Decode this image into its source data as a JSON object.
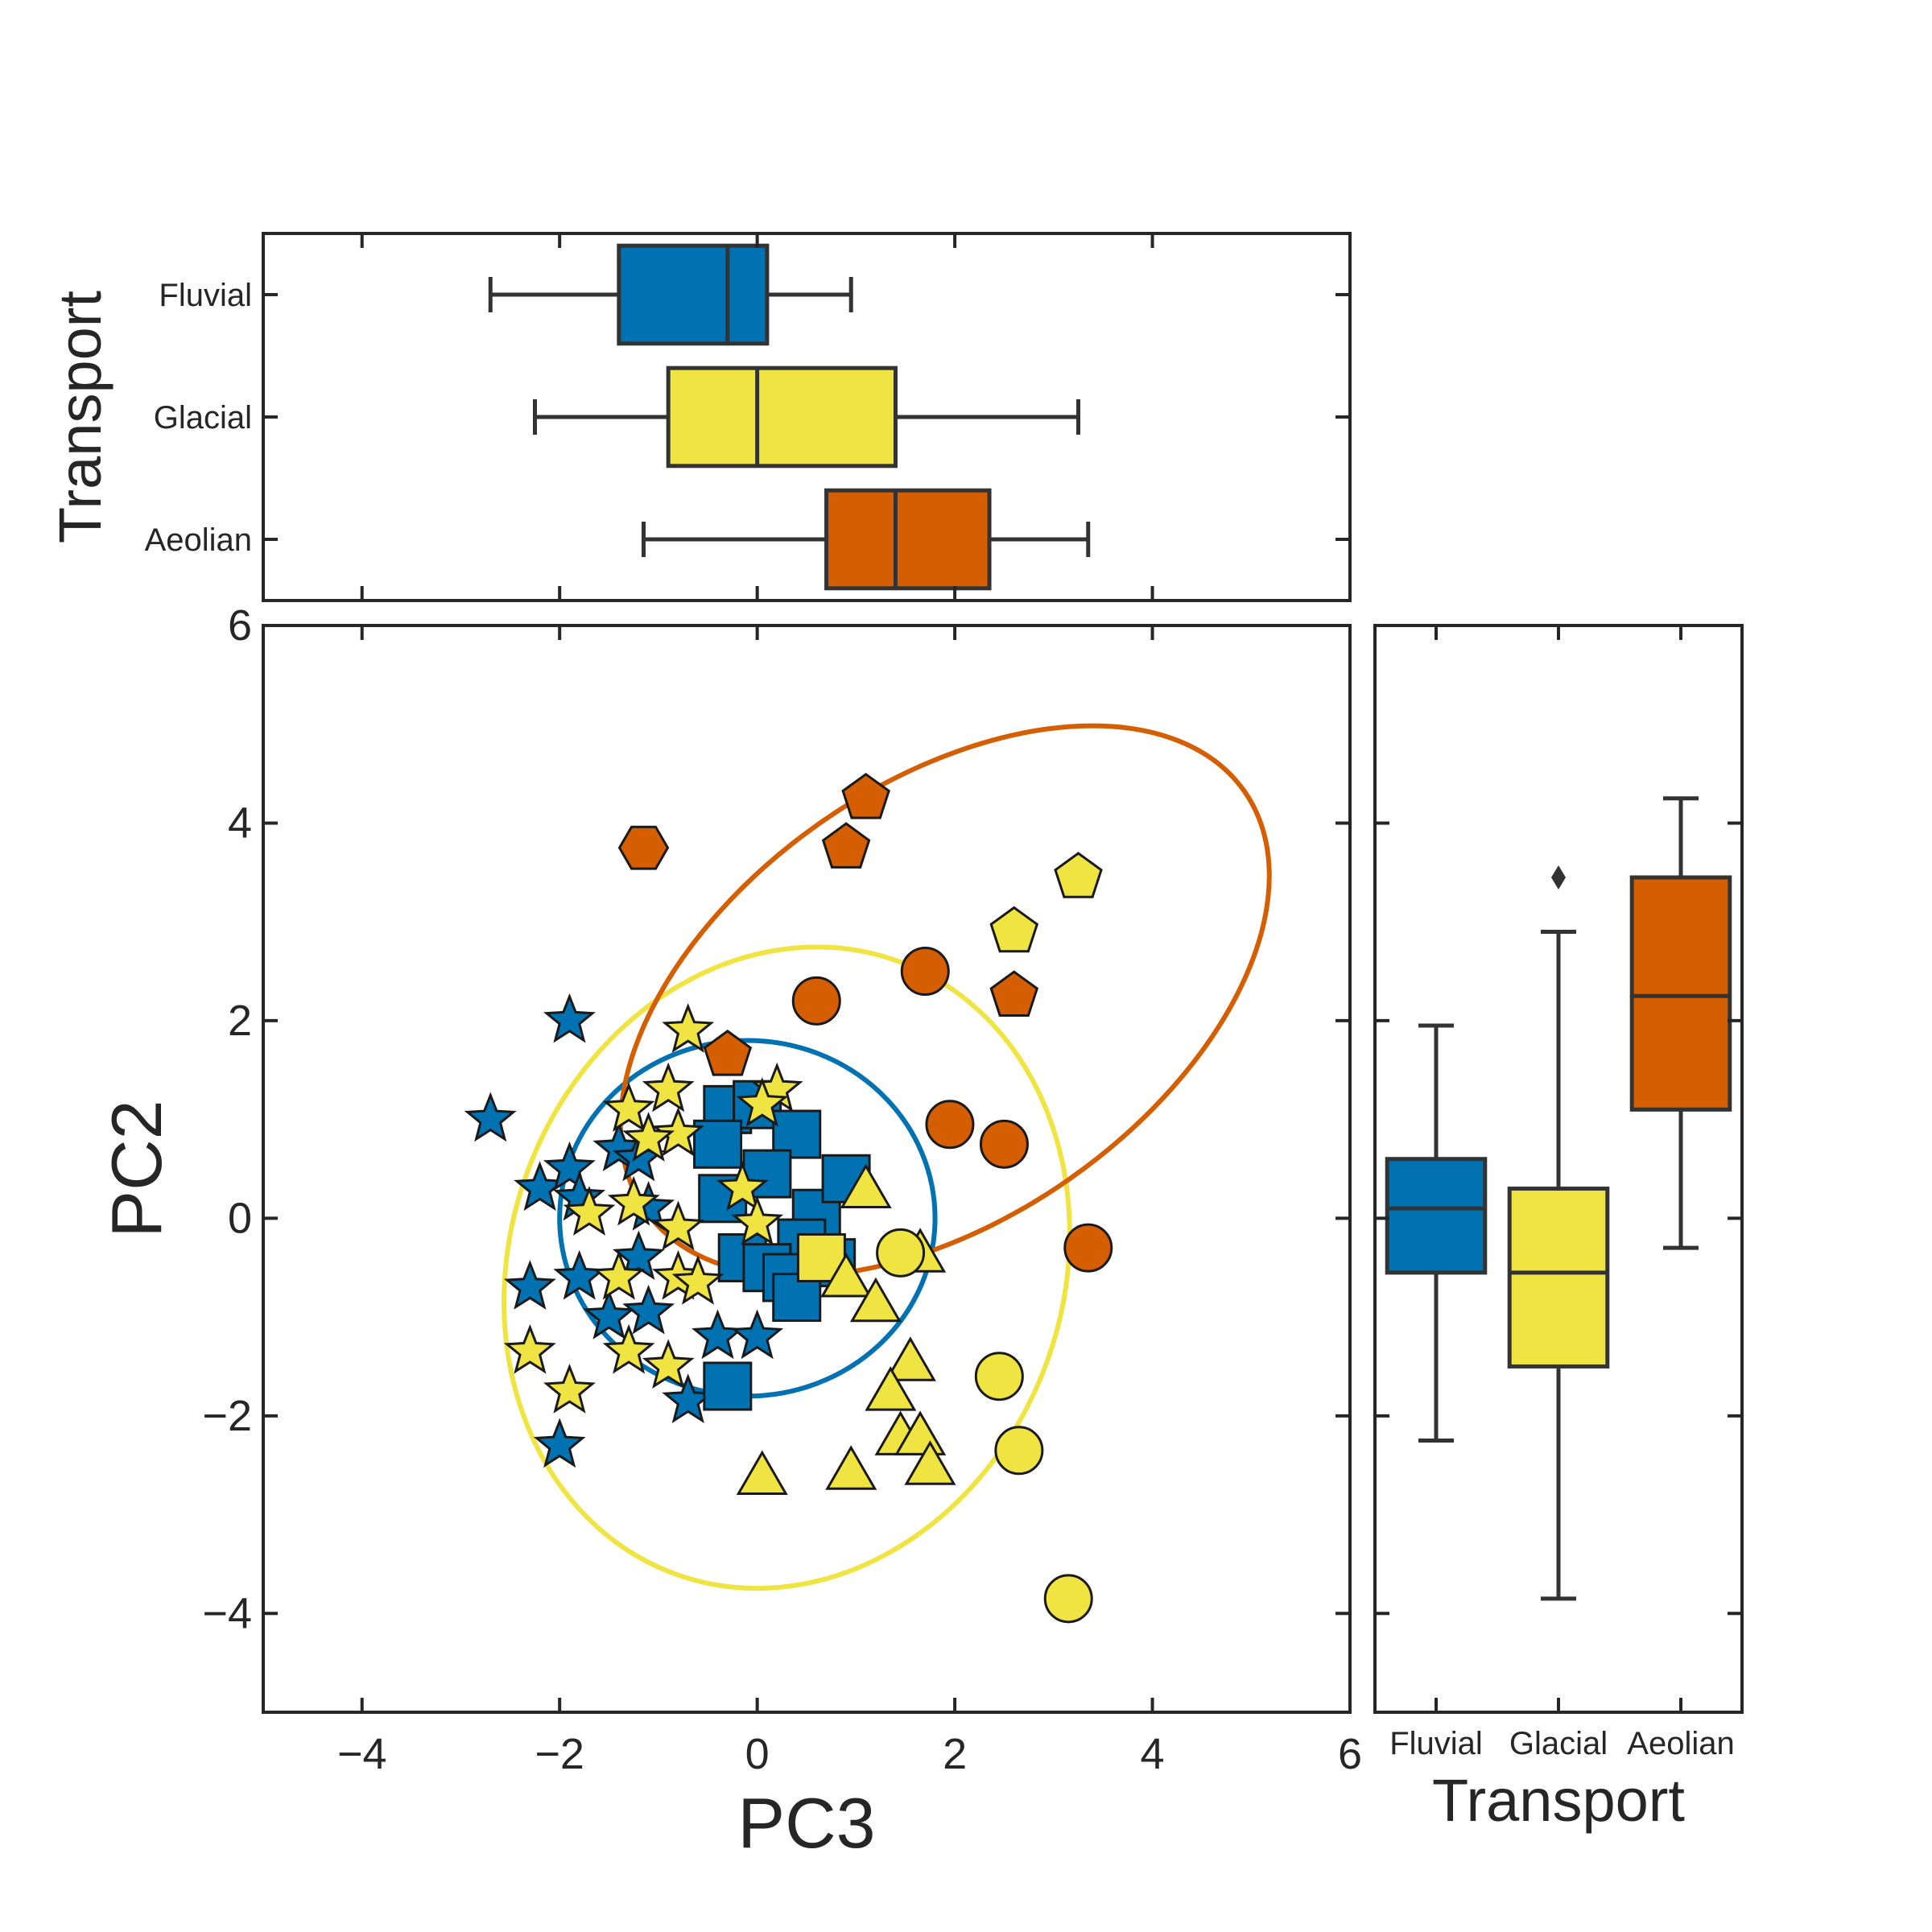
{
  "colors": {
    "Fluvial": "#0072B2",
    "Glacial": "#F0E442",
    "Aeolian": "#D55E00",
    "axis": "#262626",
    "box_edge": "#333333"
  },
  "chart_data": {
    "type": "scatter",
    "title": "",
    "xlabel": "PC3",
    "ylabel": "PC2",
    "xlim": [
      -5,
      6
    ],
    "ylim": [
      -5,
      6
    ],
    "xticks": [
      -4,
      -2,
      0,
      2,
      4,
      6
    ],
    "yticks": [
      -4,
      -2,
      0,
      2,
      4,
      6
    ],
    "xtick_labels": [
      "−4",
      "−2",
      "0",
      "2",
      "4",
      "6"
    ],
    "ytick_labels": [
      "−4",
      "−2",
      "0",
      "2",
      "4",
      "6"
    ],
    "grid": false,
    "groups": [
      "Fluvial",
      "Glacial",
      "Aeolian"
    ],
    "points": [
      {
        "x": -1.9,
        "y": 2.0,
        "group": "Fluvial",
        "marker": "star"
      },
      {
        "x": -2.7,
        "y": 1.0,
        "group": "Fluvial",
        "marker": "star"
      },
      {
        "x": -2.2,
        "y": 0.3,
        "group": "Fluvial",
        "marker": "star"
      },
      {
        "x": -1.9,
        "y": 0.5,
        "group": "Fluvial",
        "marker": "star"
      },
      {
        "x": -1.8,
        "y": 0.2,
        "group": "Fluvial",
        "marker": "star"
      },
      {
        "x": -1.4,
        "y": 0.7,
        "group": "Fluvial",
        "marker": "star"
      },
      {
        "x": -1.2,
        "y": 0.6,
        "group": "Fluvial",
        "marker": "star"
      },
      {
        "x": -1.1,
        "y": 0.1,
        "group": "Fluvial",
        "marker": "star"
      },
      {
        "x": -1.2,
        "y": -0.4,
        "group": "Fluvial",
        "marker": "star"
      },
      {
        "x": -2.3,
        "y": -0.7,
        "group": "Fluvial",
        "marker": "star"
      },
      {
        "x": -1.8,
        "y": -0.6,
        "group": "Fluvial",
        "marker": "star"
      },
      {
        "x": -1.5,
        "y": -1.0,
        "group": "Fluvial",
        "marker": "star"
      },
      {
        "x": -1.1,
        "y": -0.95,
        "group": "Fluvial",
        "marker": "star"
      },
      {
        "x": -0.4,
        "y": -1.2,
        "group": "Fluvial",
        "marker": "star"
      },
      {
        "x": 0.0,
        "y": -1.2,
        "group": "Fluvial",
        "marker": "star"
      },
      {
        "x": -0.7,
        "y": -1.85,
        "group": "Fluvial",
        "marker": "star"
      },
      {
        "x": -2.0,
        "y": -2.3,
        "group": "Fluvial",
        "marker": "star"
      },
      {
        "x": -0.3,
        "y": 1.1,
        "group": "Fluvial",
        "marker": "square"
      },
      {
        "x": 0.0,
        "y": 1.15,
        "group": "Fluvial",
        "marker": "square"
      },
      {
        "x": -0.4,
        "y": 0.75,
        "group": "Fluvial",
        "marker": "square"
      },
      {
        "x": 0.4,
        "y": 0.85,
        "group": "Fluvial",
        "marker": "square"
      },
      {
        "x": 0.1,
        "y": 0.45,
        "group": "Fluvial",
        "marker": "square"
      },
      {
        "x": -0.35,
        "y": 0.2,
        "group": "Fluvial",
        "marker": "square"
      },
      {
        "x": 0.6,
        "y": 0.05,
        "group": "Fluvial",
        "marker": "square"
      },
      {
        "x": 0.9,
        "y": 0.4,
        "group": "Fluvial",
        "marker": "square"
      },
      {
        "x": 0.45,
        "y": -0.25,
        "group": "Fluvial",
        "marker": "square"
      },
      {
        "x": -0.15,
        "y": -0.4,
        "group": "Fluvial",
        "marker": "square"
      },
      {
        "x": 0.1,
        "y": -0.5,
        "group": "Fluvial",
        "marker": "square"
      },
      {
        "x": 0.3,
        "y": -0.6,
        "group": "Fluvial",
        "marker": "square"
      },
      {
        "x": 0.75,
        "y": -0.45,
        "group": "Fluvial",
        "marker": "square"
      },
      {
        "x": 0.4,
        "y": -0.8,
        "group": "Fluvial",
        "marker": "square"
      },
      {
        "x": -0.3,
        "y": -1.7,
        "group": "Fluvial",
        "marker": "square"
      },
      {
        "x": -1.3,
        "y": 1.1,
        "group": "Glacial",
        "marker": "star"
      },
      {
        "x": -0.9,
        "y": 1.3,
        "group": "Glacial",
        "marker": "star"
      },
      {
        "x": -0.8,
        "y": 0.85,
        "group": "Glacial",
        "marker": "star"
      },
      {
        "x": -1.1,
        "y": 0.8,
        "group": "Glacial",
        "marker": "star"
      },
      {
        "x": -0.7,
        "y": 1.9,
        "group": "Glacial",
        "marker": "star"
      },
      {
        "x": 0.2,
        "y": 1.3,
        "group": "Glacial",
        "marker": "star"
      },
      {
        "x": 0.05,
        "y": 1.15,
        "group": "Glacial",
        "marker": "star"
      },
      {
        "x": -0.15,
        "y": 0.3,
        "group": "Glacial",
        "marker": "star"
      },
      {
        "x": 0.0,
        "y": -0.05,
        "group": "Glacial",
        "marker": "star"
      },
      {
        "x": -1.7,
        "y": 0.05,
        "group": "Glacial",
        "marker": "star"
      },
      {
        "x": -1.25,
        "y": 0.15,
        "group": "Glacial",
        "marker": "star"
      },
      {
        "x": -0.8,
        "y": -0.1,
        "group": "Glacial",
        "marker": "star"
      },
      {
        "x": -1.4,
        "y": -0.6,
        "group": "Glacial",
        "marker": "star"
      },
      {
        "x": -0.8,
        "y": -0.6,
        "group": "Glacial",
        "marker": "star"
      },
      {
        "x": -0.6,
        "y": -0.65,
        "group": "Glacial",
        "marker": "star"
      },
      {
        "x": -2.3,
        "y": -1.35,
        "group": "Glacial",
        "marker": "star"
      },
      {
        "x": -1.3,
        "y": -1.35,
        "group": "Glacial",
        "marker": "star"
      },
      {
        "x": -0.9,
        "y": -1.5,
        "group": "Glacial",
        "marker": "star"
      },
      {
        "x": -1.9,
        "y": -1.75,
        "group": "Glacial",
        "marker": "star"
      },
      {
        "x": 0.65,
        "y": -0.4,
        "group": "Glacial",
        "marker": "square"
      },
      {
        "x": 1.1,
        "y": 0.3,
        "group": "Glacial",
        "marker": "triangle"
      },
      {
        "x": 0.9,
        "y": -0.6,
        "group": "Glacial",
        "marker": "triangle"
      },
      {
        "x": 1.2,
        "y": -0.85,
        "group": "Glacial",
        "marker": "triangle"
      },
      {
        "x": 1.65,
        "y": -0.35,
        "group": "Glacial",
        "marker": "triangle"
      },
      {
        "x": 1.55,
        "y": -1.45,
        "group": "Glacial",
        "marker": "triangle"
      },
      {
        "x": 1.35,
        "y": -1.75,
        "group": "Glacial",
        "marker": "triangle"
      },
      {
        "x": 1.45,
        "y": -2.2,
        "group": "Glacial",
        "marker": "triangle"
      },
      {
        "x": 1.65,
        "y": -2.2,
        "group": "Glacial",
        "marker": "triangle"
      },
      {
        "x": 1.75,
        "y": -2.5,
        "group": "Glacial",
        "marker": "triangle"
      },
      {
        "x": 0.05,
        "y": -2.6,
        "group": "Glacial",
        "marker": "triangle"
      },
      {
        "x": 0.95,
        "y": -2.55,
        "group": "Glacial",
        "marker": "triangle"
      },
      {
        "x": 1.45,
        "y": -0.35,
        "group": "Glacial",
        "marker": "circle"
      },
      {
        "x": 2.45,
        "y": -1.6,
        "group": "Glacial",
        "marker": "circle"
      },
      {
        "x": 2.65,
        "y": -2.35,
        "group": "Glacial",
        "marker": "circle"
      },
      {
        "x": 3.15,
        "y": -3.85,
        "group": "Glacial",
        "marker": "circle"
      },
      {
        "x": 2.6,
        "y": 2.9,
        "group": "Glacial",
        "marker": "pentagon"
      },
      {
        "x": 3.25,
        "y": 3.45,
        "group": "Glacial",
        "marker": "pentagon"
      },
      {
        "x": -1.15,
        "y": 3.75,
        "group": "Aeolian",
        "marker": "hexagon"
      },
      {
        "x": 1.1,
        "y": 4.25,
        "group": "Aeolian",
        "marker": "pentagon"
      },
      {
        "x": 0.9,
        "y": 3.75,
        "group": "Aeolian",
        "marker": "pentagon"
      },
      {
        "x": 2.6,
        "y": 2.25,
        "group": "Aeolian",
        "marker": "pentagon"
      },
      {
        "x": -0.3,
        "y": 1.65,
        "group": "Aeolian",
        "marker": "pentagon"
      },
      {
        "x": 0.6,
        "y": 2.2,
        "group": "Aeolian",
        "marker": "circle"
      },
      {
        "x": 1.7,
        "y": 2.5,
        "group": "Aeolian",
        "marker": "circle"
      },
      {
        "x": 1.95,
        "y": 0.95,
        "group": "Aeolian",
        "marker": "circle"
      },
      {
        "x": 2.5,
        "y": 0.75,
        "group": "Aeolian",
        "marker": "circle"
      },
      {
        "x": 3.35,
        "y": -0.3,
        "group": "Aeolian",
        "marker": "circle"
      }
    ],
    "ellipses": [
      {
        "group": "Fluvial",
        "center": [
          -0.1,
          0.0
        ],
        "semi_axes": [
          1.9,
          1.8
        ],
        "angle_deg": 0
      },
      {
        "group": "Glacial",
        "center": [
          0.3,
          -0.5
        ],
        "semi_axes": [
          3.3,
          2.8
        ],
        "angle_deg": -70
      },
      {
        "group": "Aeolian",
        "center": [
          1.9,
          2.2
        ],
        "semi_axes": [
          3.7,
          2.2
        ],
        "angle_deg": -35
      }
    ],
    "top_boxplot": {
      "ylabel": "Transport",
      "axis": "PC3",
      "categories": [
        "Fluvial",
        "Glacial",
        "Aeolian"
      ],
      "boxes": [
        {
          "name": "Fluvial",
          "whisker_low": -2.7,
          "q1": -1.4,
          "median": -0.3,
          "q3": 0.1,
          "whisker_high": 0.95,
          "outliers": []
        },
        {
          "name": "Glacial",
          "whisker_low": -2.25,
          "q1": -0.9,
          "median": 0.0,
          "q3": 1.4,
          "whisker_high": 3.25,
          "outliers": []
        },
        {
          "name": "Aeolian",
          "whisker_low": -1.15,
          "q1": 0.7,
          "median": 1.4,
          "q3": 2.35,
          "whisker_high": 3.35,
          "outliers": []
        }
      ]
    },
    "right_boxplot": {
      "xlabel": "Transport",
      "axis": "PC2",
      "categories": [
        "Fluvial",
        "Glacial",
        "Aeolian"
      ],
      "boxes": [
        {
          "name": "Fluvial",
          "whisker_low": -2.25,
          "q1": -0.55,
          "median": 0.1,
          "q3": 0.6,
          "whisker_high": 1.95,
          "outliers": []
        },
        {
          "name": "Glacial",
          "whisker_low": -3.85,
          "q1": -1.5,
          "median": -0.55,
          "q3": 0.3,
          "whisker_high": 2.9,
          "outliers": [
            3.45
          ]
        },
        {
          "name": "Aeolian",
          "whisker_low": -0.3,
          "q1": 1.1,
          "median": 2.25,
          "q3": 3.45,
          "whisker_high": 4.25,
          "outliers": []
        }
      ]
    }
  }
}
